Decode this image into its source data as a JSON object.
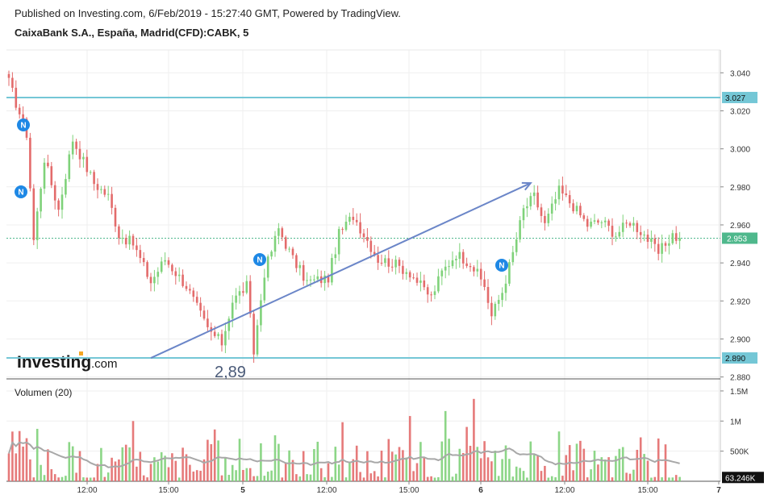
{
  "header": {
    "published": "Published on Investing.com, 6/Feb/2019 - 15:27:40 GMT, Powered by TradingView.",
    "title": "CaixaBank S.A., España, Madrid(CFD):CABK, 5"
  },
  "logo": {
    "brand": "Investing",
    "suffix": ".com"
  },
  "annotation": {
    "text": "2,89"
  },
  "colors": {
    "up": "#7fd27a",
    "down": "#e36b6b",
    "hline": "#74c7d6",
    "trend": "#6b86c8",
    "last_price": "#4fb88c",
    "news_badge": "#1e88e5",
    "volume_ma": "#a8a8a8"
  },
  "news_badges": [
    {
      "label": "N"
    },
    {
      "label": "N"
    },
    {
      "label": "N"
    },
    {
      "label": "N"
    }
  ],
  "chart_data": [
    {
      "type": "candlestick",
      "title": "CaixaBank S.A., España, Madrid(CFD):CABK, 5",
      "x_ticks": [
        "12:00",
        "15:00",
        "5",
        "12:00",
        "15:00",
        "6",
        "12:00",
        "15:00",
        "7"
      ],
      "y_ticks": [
        "3.040",
        "3.020",
        "3.000",
        "2.980",
        "2.960",
        "2.940",
        "2.920",
        "2.900",
        "2.880"
      ],
      "ylim": [
        2.879,
        3.052
      ],
      "grid": true,
      "horizontal_lines": [
        {
          "value": 3.027,
          "label": "3.027"
        },
        {
          "value": 2.89,
          "label": "2.890"
        }
      ],
      "last_price": {
        "value": 2.953,
        "label": "2.953"
      },
      "trend_line": {
        "from": {
          "bar": 40,
          "value": 2.89
        },
        "to": {
          "bar": 147,
          "value": 2.982
        }
      },
      "path_points": [
        [
          0,
          3.035
        ],
        [
          5,
          3.008
        ],
        [
          7,
          2.952
        ],
        [
          10,
          2.995
        ],
        [
          14,
          2.968
        ],
        [
          18,
          3.005
        ],
        [
          24,
          2.982
        ],
        [
          28,
          2.975
        ],
        [
          31,
          2.955
        ],
        [
          35,
          2.95
        ],
        [
          40,
          2.93
        ],
        [
          44,
          2.942
        ],
        [
          50,
          2.928
        ],
        [
          56,
          2.905
        ],
        [
          60,
          2.898
        ],
        [
          63,
          2.92
        ],
        [
          67,
          2.928
        ],
        [
          69,
          2.893
        ],
        [
          72,
          2.935
        ],
        [
          76,
          2.958
        ],
        [
          80,
          2.942
        ],
        [
          84,
          2.93
        ],
        [
          90,
          2.932
        ],
        [
          93,
          2.955
        ],
        [
          97,
          2.965
        ],
        [
          101,
          2.952
        ],
        [
          104,
          2.942
        ],
        [
          108,
          2.94
        ],
        [
          113,
          2.935
        ],
        [
          116,
          2.928
        ],
        [
          119,
          2.922
        ],
        [
          122,
          2.935
        ],
        [
          126,
          2.945
        ],
        [
          130,
          2.94
        ],
        [
          134,
          2.928
        ],
        [
          136,
          2.912
        ],
        [
          139,
          2.925
        ],
        [
          142,
          2.945
        ],
        [
          145,
          2.968
        ],
        [
          148,
          2.975
        ],
        [
          151,
          2.96
        ],
        [
          155,
          2.978
        ],
        [
          159,
          2.97
        ],
        [
          163,
          2.96
        ],
        [
          167,
          2.962
        ],
        [
          171,
          2.955
        ],
        [
          175,
          2.962
        ],
        [
          179,
          2.955
        ],
        [
          183,
          2.945
        ],
        [
          187,
          2.955
        ],
        [
          189,
          2.952
        ]
      ]
    },
    {
      "type": "bar",
      "title": "Volumen (20)",
      "y_ticks": [
        "1.5M",
        "1M",
        "500K"
      ],
      "ylim": [
        0,
        1700000
      ],
      "last_value": {
        "value": 63246,
        "label": "63.246K"
      },
      "moving_average_period": 20
    }
  ]
}
